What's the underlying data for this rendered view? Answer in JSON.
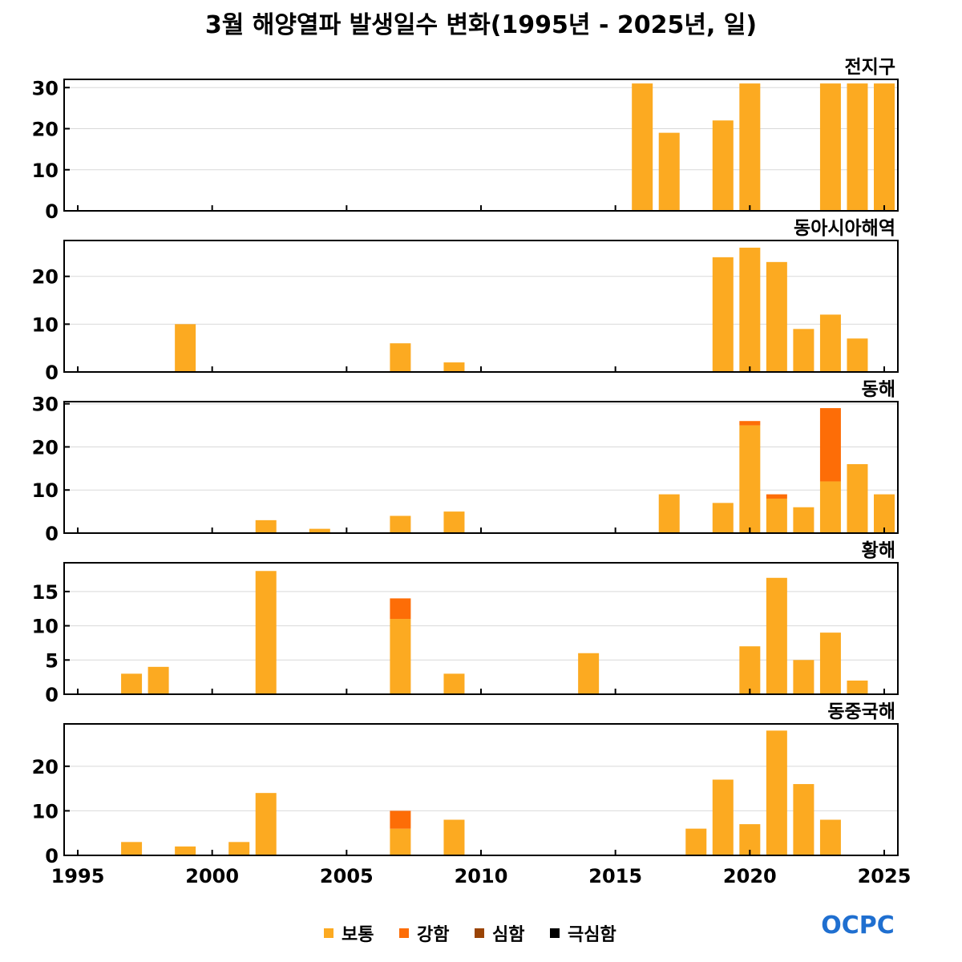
{
  "title": "3월 해양열파 발생일수 변화(1995년 - 2025년, 일)",
  "logo": {
    "text": "OCPC",
    "color": "#1f6fd0"
  },
  "colors": {
    "보통": "#fcaa21",
    "강함": "#fd6d07",
    "심함": "#9a4405",
    "극심함": "#000000"
  },
  "chart_data": [
    {
      "type": "bar",
      "region": "전지구",
      "xlim": [
        1995,
        2025
      ],
      "x_ticks": [
        1995,
        2000,
        2005,
        2010,
        2015,
        2020,
        2025
      ],
      "ylim": [
        0,
        32
      ],
      "y_ticks": [
        0,
        10,
        20,
        30
      ],
      "grid": true,
      "stacked": true,
      "bars": [
        {
          "year": 2016,
          "보통": 31,
          "강함": 0
        },
        {
          "year": 2017,
          "보통": 19,
          "강함": 0
        },
        {
          "year": 2019,
          "보통": 22,
          "강함": 0
        },
        {
          "year": 2020,
          "보통": 31,
          "강함": 0
        },
        {
          "year": 2023,
          "보통": 31,
          "강함": 0
        },
        {
          "year": 2024,
          "보통": 31,
          "강함": 0
        },
        {
          "year": 2025,
          "보통": 31,
          "강함": 0
        }
      ]
    },
    {
      "type": "bar",
      "region": "동아시아해역",
      "xlim": [
        1995,
        2025
      ],
      "x_ticks": [
        1995,
        2000,
        2005,
        2010,
        2015,
        2020,
        2025
      ],
      "ylim": [
        0,
        27.5
      ],
      "y_ticks": [
        0,
        10,
        20
      ],
      "grid": true,
      "stacked": true,
      "bars": [
        {
          "year": 1999,
          "보통": 10,
          "강함": 0
        },
        {
          "year": 2007,
          "보통": 6,
          "강함": 0
        },
        {
          "year": 2009,
          "보통": 2,
          "강함": 0
        },
        {
          "year": 2019,
          "보통": 24,
          "강함": 0
        },
        {
          "year": 2020,
          "보통": 26,
          "강함": 0
        },
        {
          "year": 2021,
          "보통": 23,
          "강함": 0
        },
        {
          "year": 2022,
          "보통": 9,
          "강함": 0
        },
        {
          "year": 2023,
          "보통": 12,
          "강함": 0
        },
        {
          "year": 2024,
          "보통": 7,
          "강함": 0
        }
      ]
    },
    {
      "type": "bar",
      "region": "동해",
      "xlim": [
        1995,
        2025
      ],
      "x_ticks": [
        1995,
        2000,
        2005,
        2010,
        2015,
        2020,
        2025
      ],
      "ylim": [
        0,
        30.5
      ],
      "y_ticks": [
        0,
        10,
        20,
        30
      ],
      "grid": true,
      "stacked": true,
      "bars": [
        {
          "year": 2002,
          "보통": 3,
          "강함": 0
        },
        {
          "year": 2004,
          "보통": 1,
          "강함": 0
        },
        {
          "year": 2007,
          "보통": 4,
          "강함": 0
        },
        {
          "year": 2009,
          "보통": 5,
          "강함": 0
        },
        {
          "year": 2017,
          "보통": 9,
          "강함": 0
        },
        {
          "year": 2019,
          "보통": 7,
          "강함": 0
        },
        {
          "year": 2020,
          "보통": 25,
          "강함": 1
        },
        {
          "year": 2021,
          "보통": 8,
          "강함": 1
        },
        {
          "year": 2022,
          "보통": 6,
          "강함": 0
        },
        {
          "year": 2023,
          "보통": 12,
          "강함": 17
        },
        {
          "year": 2024,
          "보통": 16,
          "강함": 0
        },
        {
          "year": 2025,
          "보통": 9,
          "강함": 0
        }
      ]
    },
    {
      "type": "bar",
      "region": "황해",
      "xlim": [
        1995,
        2025
      ],
      "x_ticks": [
        1995,
        2000,
        2005,
        2010,
        2015,
        2020,
        2025
      ],
      "ylim": [
        0,
        19.2
      ],
      "y_ticks": [
        0,
        5,
        10,
        15
      ],
      "grid": true,
      "stacked": true,
      "bars": [
        {
          "year": 1997,
          "보통": 3,
          "강함": 0
        },
        {
          "year": 1998,
          "보통": 4,
          "강함": 0
        },
        {
          "year": 2002,
          "보통": 18,
          "강함": 0
        },
        {
          "year": 2007,
          "보통": 11,
          "강함": 3
        },
        {
          "year": 2009,
          "보통": 3,
          "강함": 0
        },
        {
          "year": 2014,
          "보통": 6,
          "강함": 0
        },
        {
          "year": 2020,
          "보통": 7,
          "강함": 0
        },
        {
          "year": 2021,
          "보통": 17,
          "강함": 0
        },
        {
          "year": 2022,
          "보통": 5,
          "강함": 0
        },
        {
          "year": 2023,
          "보통": 9,
          "강함": 0
        },
        {
          "year": 2024,
          "보통": 2,
          "강함": 0
        }
      ]
    },
    {
      "type": "bar",
      "region": "동중국해",
      "xlim": [
        1995,
        2025
      ],
      "x_ticks": [
        1995,
        2000,
        2005,
        2010,
        2015,
        2020,
        2025
      ],
      "ylim": [
        0,
        29.5
      ],
      "y_ticks": [
        0,
        10,
        20
      ],
      "grid": true,
      "stacked": true,
      "bars": [
        {
          "year": 1997,
          "보통": 3,
          "강함": 0
        },
        {
          "year": 1999,
          "보통": 2,
          "강함": 0
        },
        {
          "year": 2001,
          "보통": 3,
          "강함": 0
        },
        {
          "year": 2002,
          "보통": 14,
          "강함": 0
        },
        {
          "year": 2007,
          "보통": 6,
          "강함": 4
        },
        {
          "year": 2009,
          "보통": 8,
          "강함": 0
        },
        {
          "year": 2018,
          "보통": 6,
          "강함": 0
        },
        {
          "year": 2019,
          "보통": 17,
          "강함": 0
        },
        {
          "year": 2020,
          "보통": 7,
          "강함": 0
        },
        {
          "year": 2021,
          "보통": 28,
          "강함": 0
        },
        {
          "year": 2022,
          "보통": 16,
          "강함": 0
        },
        {
          "year": 2023,
          "보통": 8,
          "강함": 0
        }
      ]
    }
  ],
  "legend": {
    "placement": "bottom-center",
    "items": [
      {
        "label": "보통",
        "color": "#fcaa21"
      },
      {
        "label": "강함",
        "color": "#fd6d07"
      },
      {
        "label": "심함",
        "color": "#9a4405"
      },
      {
        "label": "극심함",
        "color": "#000000"
      }
    ]
  }
}
